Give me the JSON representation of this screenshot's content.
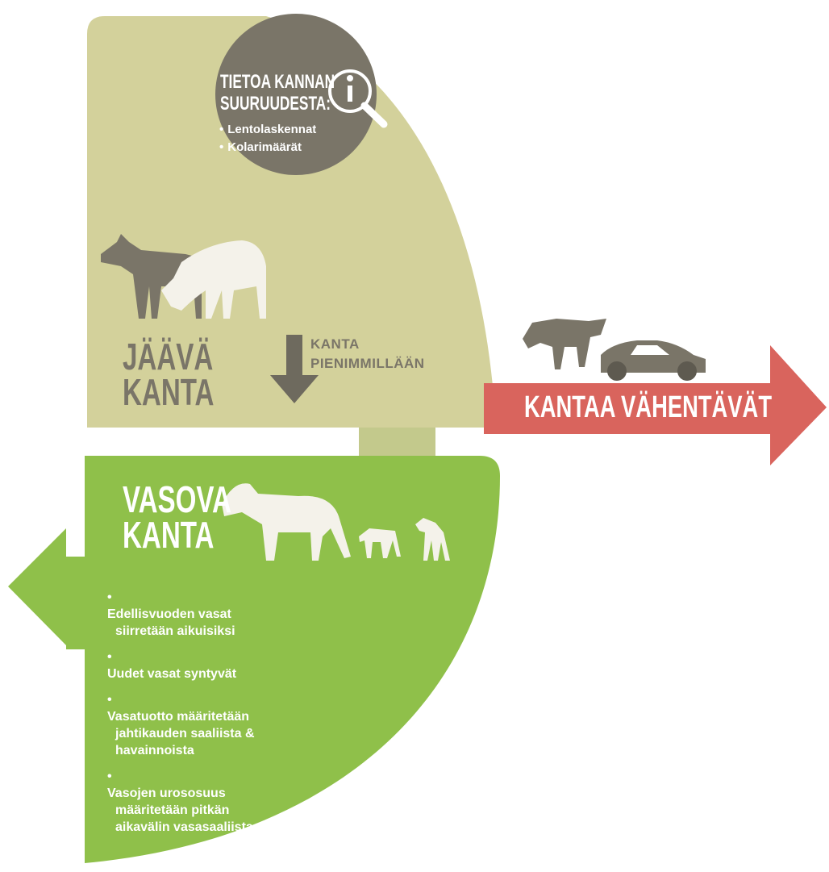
{
  "info": {
    "title_lines": [
      "TIETOA KANNAN",
      "SUURUUDESTA:"
    ],
    "items": [
      "Lentolaskennat",
      "Kolarimäärät"
    ]
  },
  "remaining": {
    "title_lines": [
      "JÄÄVÄ",
      "KANTA"
    ]
  },
  "minimum": {
    "lines": [
      "KANTA",
      "PIENIMMILLÄÄN"
    ]
  },
  "reducing": {
    "label": "KANTAA VÄHENTÄVÄT"
  },
  "calving": {
    "title_lines": [
      "VASOVA",
      "KANTA"
    ],
    "items": [
      [
        "Edellisvuoden vasat",
        "siirretään aikuisiksi"
      ],
      [
        "Uudet vasat syntyvät"
      ],
      [
        "Vasatuotto määritetään",
        "jahtikauden saaliista &",
        "havainnoista"
      ],
      [
        "Vasojen urososuus",
        "määritetään pitkän",
        "aikavälin vasasaaliista"
      ]
    ]
  }
}
